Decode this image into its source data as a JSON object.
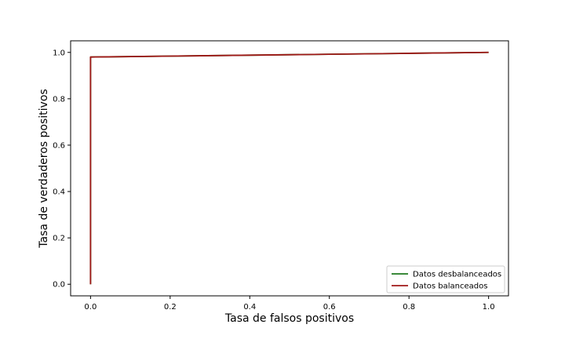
{
  "chart_data": {
    "type": "line",
    "xlabel": "Tasa de falsos positivos",
    "ylabel": "Tasa de verdaderos positivos",
    "xlim": [
      -0.05,
      1.05
    ],
    "ylim": [
      -0.05,
      1.05
    ],
    "xticks": [
      0.0,
      0.2,
      0.4,
      0.6,
      0.8,
      1.0
    ],
    "yticks": [
      0.0,
      0.2,
      0.4,
      0.6,
      0.8,
      1.0
    ],
    "xtick_labels": [
      "0.0",
      "0.2",
      "0.4",
      "0.6",
      "0.8",
      "1.0"
    ],
    "ytick_labels": [
      "0.0",
      "0.2",
      "0.4",
      "0.6",
      "0.8",
      "1.0"
    ],
    "grid": false,
    "legend": "lower-right",
    "series": [
      {
        "name": "Datos desbalanceados",
        "color": "#1f7a1f",
        "x": [
          0.0,
          0.0,
          0.0,
          0.2,
          0.4,
          0.6,
          0.8,
          1.0
        ],
        "y": [
          0.0,
          0.98,
          0.98,
          0.984,
          0.988,
          0.992,
          0.996,
          1.0
        ]
      },
      {
        "name": "Datos balanceados",
        "color": "#a01818",
        "x": [
          0.0,
          0.0,
          0.0,
          0.2,
          0.4,
          0.6,
          0.8,
          1.0
        ],
        "y": [
          0.0,
          0.98,
          0.98,
          0.984,
          0.988,
          0.992,
          0.996,
          1.0
        ]
      }
    ]
  }
}
